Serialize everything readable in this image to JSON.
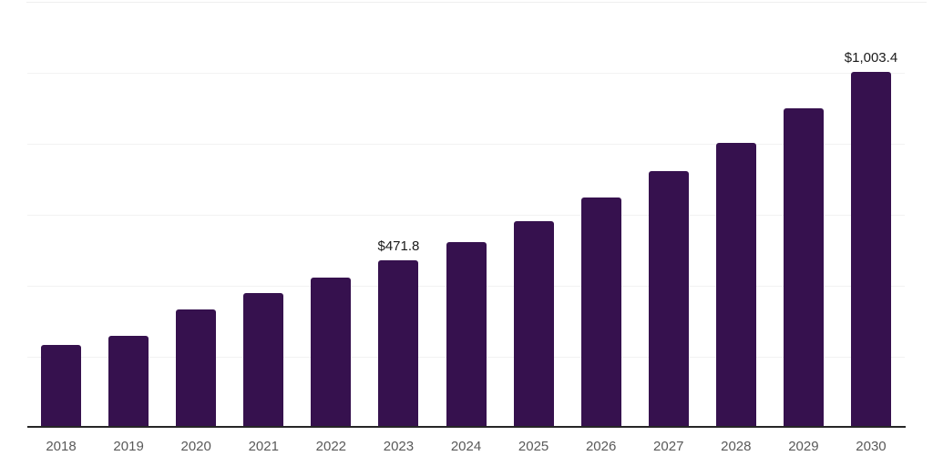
{
  "chart_data": {
    "type": "bar",
    "title": "",
    "xlabel": "",
    "ylabel": "",
    "categories": [
      "2018",
      "2019",
      "2020",
      "2021",
      "2022",
      "2023",
      "2024",
      "2025",
      "2026",
      "2027",
      "2028",
      "2029",
      "2030"
    ],
    "values": [
      234,
      260,
      333,
      379,
      423,
      471.8,
      523,
      582,
      649,
      723,
      802,
      900,
      1003.4
    ],
    "value_labels": [
      {
        "category": "2023",
        "text": "$471.8"
      },
      {
        "category": "2030",
        "text": "$1,003.4"
      }
    ],
    "ylim": [
      0,
      1200
    ],
    "gridline_step": 200,
    "grid": true,
    "legend": "none",
    "colors": {
      "bar": "#36114E",
      "axis_line": "#262626",
      "gridline": "#f2f2f2",
      "top_border": "#efefef",
      "tick_label": "#595959",
      "value_label": "#1a1a1a",
      "background": "#ffffff"
    }
  }
}
